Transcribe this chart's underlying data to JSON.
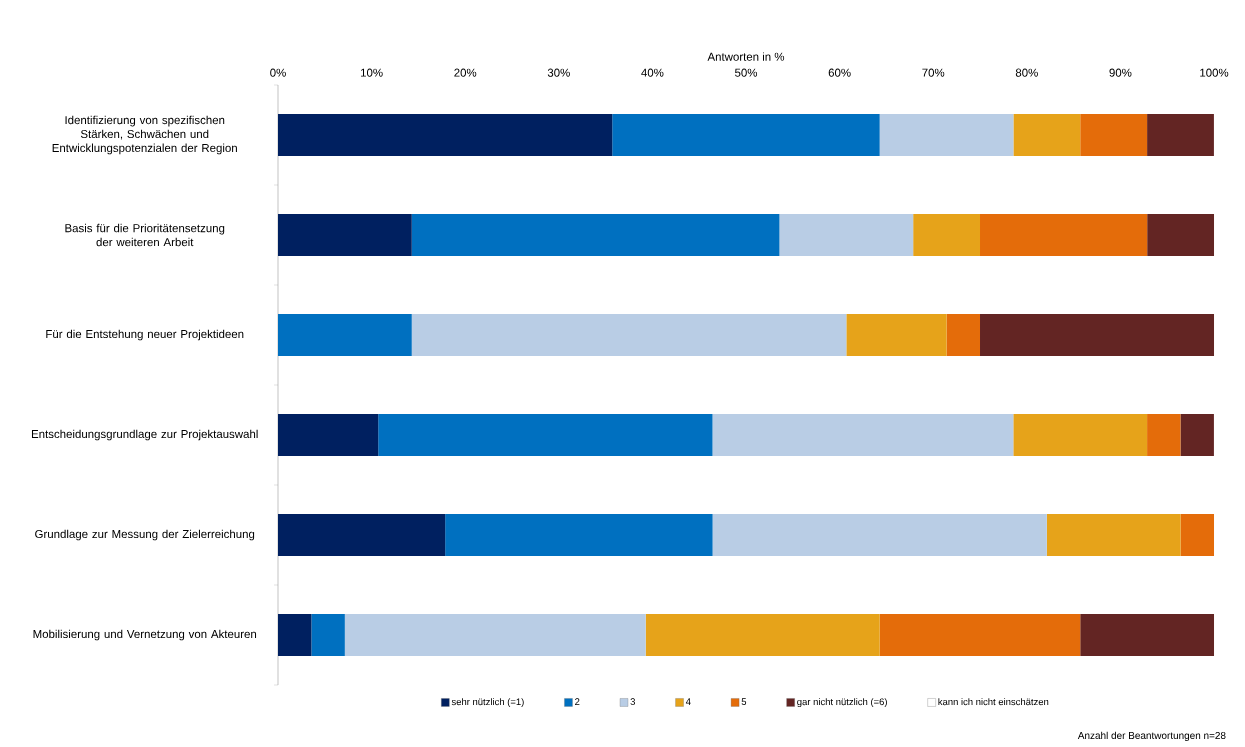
{
  "chart_data": {
    "type": "bar",
    "orientation": "horizontal",
    "stacked": true,
    "xlabel": "Antworten in %",
    "categories": [
      "Identifizierung von spezifischen Stärken, Schwächen und Entwicklungspotenzialen der Region",
      "Basis für die Prioritätensetzung der weiteren Arbeit",
      "Für die Entstehung neuer Projektideen",
      "Entscheidungsgrundlage zur Projektauswahl",
      "Grundlage zur Messung der Zielerreichung",
      "Mobilisierung und Vernetzung von Akteuren"
    ],
    "series": [
      {
        "name": "sehr nützlich (=1)",
        "color": "#002060",
        "values": [
          35.71,
          14.29,
          null,
          10.71,
          17.86,
          3.57
        ]
      },
      {
        "name": "2",
        "color": "#0070c0",
        "values": [
          28.57,
          39.28,
          14.29,
          35.71,
          28.57,
          3.57
        ]
      },
      {
        "name": "3",
        "color": "#b9cde5",
        "values": [
          14.29,
          14.29,
          46.43,
          32.14,
          35.71,
          32.14
        ]
      },
      {
        "name": "4",
        "color": "#e6a31a",
        "values": [
          7.14,
          7.14,
          10.71,
          14.29,
          14.29,
          25
        ]
      },
      {
        "name": "5",
        "color": "#e46c0a",
        "values": [
          7.14,
          17.86,
          3.57,
          3.57,
          3.57,
          21.43
        ]
      },
      {
        "name": "gar nicht nützlich (=6)",
        "color": "#632523",
        "values": [
          7.14,
          7.14,
          25,
          3.57,
          null,
          14.29
        ]
      },
      {
        "name": "kann ich nicht einschätzen",
        "color": "#ffffff",
        "values": [
          null,
          null,
          null,
          null,
          null,
          null
        ]
      }
    ],
    "xlim": [
      0,
      100
    ],
    "xticks": [
      {
        "value": 0,
        "label": "0%"
      },
      {
        "value": 10,
        "label": "10%"
      },
      {
        "value": 20,
        "label": "20%"
      },
      {
        "value": 30,
        "label": "30%"
      },
      {
        "value": 40,
        "label": "40%"
      },
      {
        "value": 50,
        "label": "50%"
      },
      {
        "value": 60,
        "label": "60%"
      },
      {
        "value": 70,
        "label": "70%"
      },
      {
        "value": 80,
        "label": "80%"
      },
      {
        "value": 90,
        "label": "90%"
      },
      {
        "value": 100,
        "label": "100%"
      }
    ],
    "legend": "bottom",
    "annotations": [
      "Anzahl der Beantwortungen n=28"
    ]
  }
}
